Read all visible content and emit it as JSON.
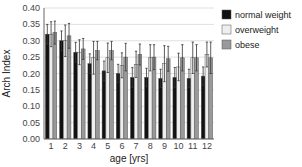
{
  "chart_data": {
    "type": "bar",
    "x_label": "age [yrs]",
    "y_label": "Arch Index",
    "categories": [
      "1",
      "2",
      "3",
      "4",
      "5",
      "6",
      "7",
      "8",
      "9",
      "10",
      "11",
      "12"
    ],
    "series": [
      {
        "name": "normal weight",
        "color": "#111111",
        "values": [
          0.32,
          0.3,
          0.265,
          0.23,
          0.208,
          0.2,
          0.188,
          0.188,
          0.185,
          0.188,
          0.185,
          0.192
        ],
        "errors": [
          0.03,
          0.03,
          0.03,
          0.03,
          0.03,
          0.028,
          0.03,
          0.028,
          0.028,
          0.03,
          0.028,
          0.028
        ]
      },
      {
        "name": "overweight",
        "color": "#eeeeee",
        "values": [
          0.32,
          0.3,
          0.265,
          0.248,
          0.248,
          0.225,
          0.228,
          0.248,
          0.23,
          0.22,
          0.248,
          0.258
        ],
        "errors": [
          0.038,
          0.048,
          0.038,
          0.05,
          0.045,
          0.038,
          0.04,
          0.04,
          0.055,
          0.042,
          0.048,
          0.038
        ]
      },
      {
        "name": "obese",
        "color": "#999999",
        "values": [
          0.325,
          0.315,
          0.275,
          0.27,
          0.27,
          0.25,
          0.258,
          0.25,
          0.245,
          0.248,
          0.248,
          0.248
        ],
        "errors": [
          0.035,
          0.038,
          0.032,
          0.028,
          0.028,
          0.042,
          0.032,
          0.038,
          0.038,
          0.04,
          0.04,
          0.048
        ]
      }
    ],
    "ylim": [
      0.0,
      0.4
    ],
    "yticks": [
      {
        "value": 0.0,
        "label": "0.00"
      },
      0.05,
      {
        "value": 0.1,
        "label": "0.10"
      },
      0.15,
      {
        "value": 0.2,
        "label": "0.20"
      },
      0.25,
      {
        "value": 0.3,
        "label": "0.30"
      },
      0.35,
      {
        "value": 0.4,
        "label": "0.40"
      }
    ],
    "grid": true,
    "legend": "right"
  }
}
